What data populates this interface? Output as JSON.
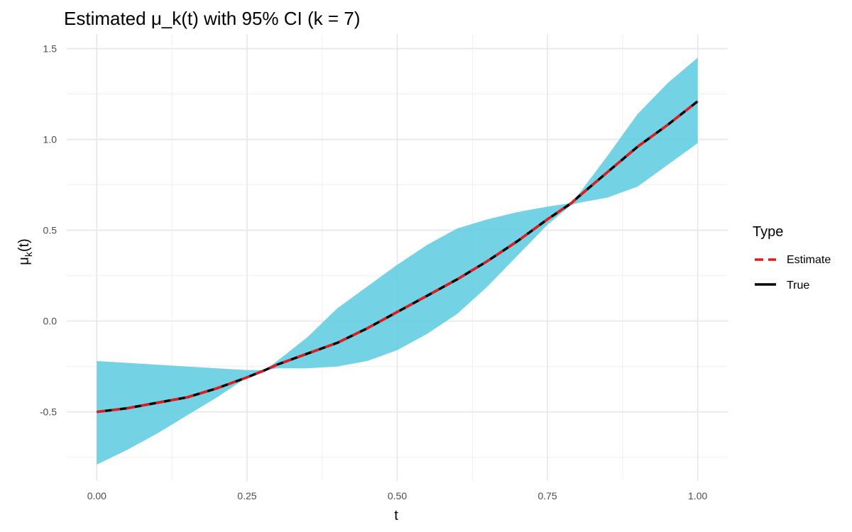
{
  "chart_data": {
    "type": "line",
    "title": "Estimated μ_k(t) with 95% CI (k = 7)",
    "xlabel": "t",
    "ylabel_base": "μ",
    "ylabel_sub": "k",
    "ylabel_tail": "(t)",
    "xlim": [
      -0.05,
      1.05
    ],
    "ylim": [
      -0.88,
      1.58
    ],
    "x_ticks": [
      0.0,
      0.25,
      0.5,
      0.75,
      1.0
    ],
    "x_tick_labels": [
      "0.00",
      "0.25",
      "0.50",
      "0.75",
      "1.00"
    ],
    "y_ticks": [
      -0.5,
      0.0,
      0.5,
      1.0,
      1.5
    ],
    "y_tick_labels": [
      "-0.5",
      "0.0",
      "0.5",
      "1.0",
      "1.5"
    ],
    "grid": true,
    "legend": {
      "title": "Type",
      "placement": "right"
    },
    "x": [
      0.0,
      0.05,
      0.1,
      0.15,
      0.2,
      0.25,
      0.28,
      0.3,
      0.35,
      0.4,
      0.45,
      0.5,
      0.55,
      0.6,
      0.65,
      0.7,
      0.75,
      0.79,
      0.8,
      0.85,
      0.9,
      0.95,
      1.0
    ],
    "series": [
      {
        "name": "Estimate",
        "color": "#e41a1c",
        "style": "dashed",
        "values": [
          -0.5,
          -0.48,
          -0.45,
          -0.42,
          -0.37,
          -0.31,
          -0.27,
          -0.24,
          -0.18,
          -0.12,
          -0.04,
          0.05,
          0.14,
          0.23,
          0.33,
          0.44,
          0.56,
          0.65,
          0.68,
          0.82,
          0.96,
          1.08,
          1.21
        ]
      },
      {
        "name": "True",
        "color": "#000000",
        "style": "solid",
        "values": [
          -0.5,
          -0.48,
          -0.45,
          -0.42,
          -0.37,
          -0.31,
          -0.27,
          -0.24,
          -0.18,
          -0.12,
          -0.04,
          0.05,
          0.14,
          0.23,
          0.33,
          0.44,
          0.56,
          0.65,
          0.68,
          0.82,
          0.96,
          1.08,
          1.21
        ]
      }
    ],
    "ribbon": {
      "name": "95% CI",
      "color": "#5acbe1",
      "lower": [
        -0.79,
        -0.71,
        -0.62,
        -0.52,
        -0.42,
        -0.31,
        -0.27,
        -0.26,
        -0.26,
        -0.25,
        -0.22,
        -0.16,
        -0.07,
        0.04,
        0.19,
        0.36,
        0.53,
        0.64,
        0.65,
        0.68,
        0.74,
        0.86,
        0.98
      ],
      "upper": [
        -0.22,
        -0.23,
        -0.24,
        -0.25,
        -0.26,
        -0.27,
        -0.27,
        -0.22,
        -0.09,
        0.07,
        0.19,
        0.31,
        0.42,
        0.51,
        0.56,
        0.6,
        0.63,
        0.65,
        0.69,
        0.91,
        1.14,
        1.31,
        1.45
      ]
    }
  }
}
